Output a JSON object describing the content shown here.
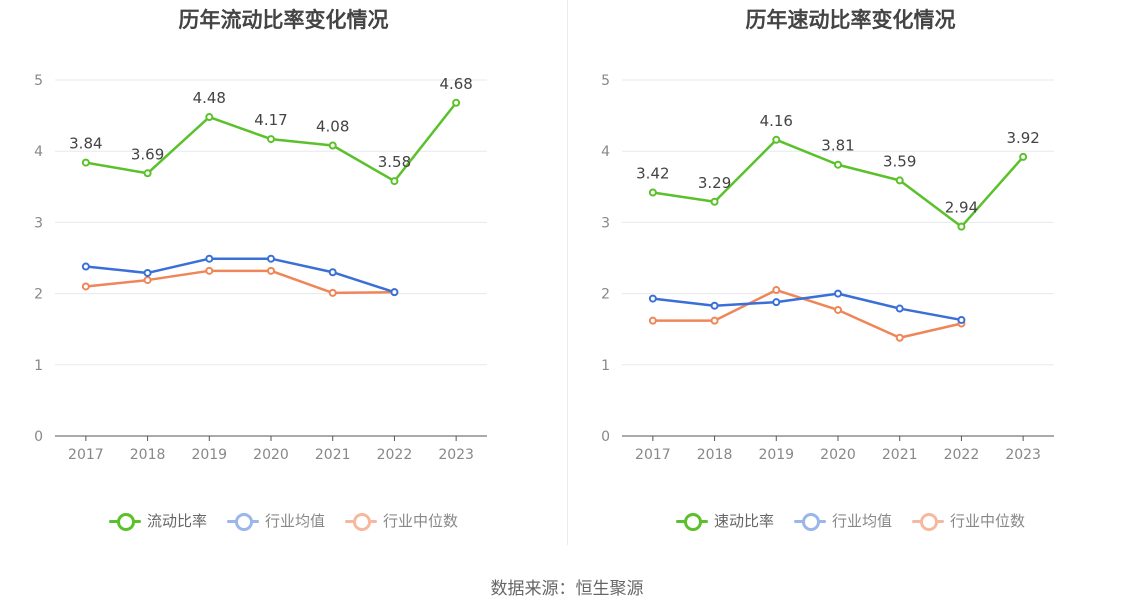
{
  "colors": {
    "current": "#5ac12a",
    "industry_avg": "#3a6fd8",
    "industry_median": "#ef8659",
    "legend_avg_muted": "#9ab6ea",
    "legend_median_muted": "#f6b9a0"
  },
  "source_text": "数据来源：恒生聚源",
  "chart_data": [
    {
      "type": "line",
      "title": "历年流动比率变化情况",
      "x": [
        "2017",
        "2018",
        "2019",
        "2020",
        "2021",
        "2022",
        "2023"
      ],
      "ylim": [
        0,
        5
      ],
      "yticks": [
        0,
        1,
        2,
        3,
        4,
        5
      ],
      "grid": true,
      "legend_position": "bottom",
      "series": [
        {
          "name": "流动比率",
          "color_key": "current",
          "labels": true,
          "values": [
            3.84,
            3.69,
            4.48,
            4.17,
            4.08,
            3.58,
            4.68
          ]
        },
        {
          "name": "行业均值",
          "color_key": "industry_avg",
          "labels": false,
          "values": [
            2.38,
            2.29,
            2.49,
            2.49,
            2.3,
            2.02,
            null
          ]
        },
        {
          "name": "行业中位数",
          "color_key": "industry_median",
          "labels": false,
          "values": [
            2.1,
            2.19,
            2.32,
            2.32,
            2.01,
            2.02,
            null
          ]
        }
      ]
    },
    {
      "type": "line",
      "title": "历年速动比率变化情况",
      "x": [
        "2017",
        "2018",
        "2019",
        "2020",
        "2021",
        "2022",
        "2023"
      ],
      "ylim": [
        0,
        5
      ],
      "yticks": [
        0,
        1,
        2,
        3,
        4,
        5
      ],
      "grid": true,
      "legend_position": "bottom",
      "series": [
        {
          "name": "速动比率",
          "color_key": "current",
          "labels": true,
          "values": [
            3.42,
            3.29,
            4.16,
            3.81,
            3.59,
            2.94,
            3.92
          ]
        },
        {
          "name": "行业均值",
          "color_key": "industry_avg",
          "labels": false,
          "values": [
            1.93,
            1.83,
            1.88,
            2.0,
            1.79,
            1.63,
            null
          ]
        },
        {
          "name": "行业中位数",
          "color_key": "industry_median",
          "labels": false,
          "values": [
            1.62,
            1.62,
            2.05,
            1.77,
            1.38,
            1.58,
            null
          ]
        }
      ]
    }
  ]
}
